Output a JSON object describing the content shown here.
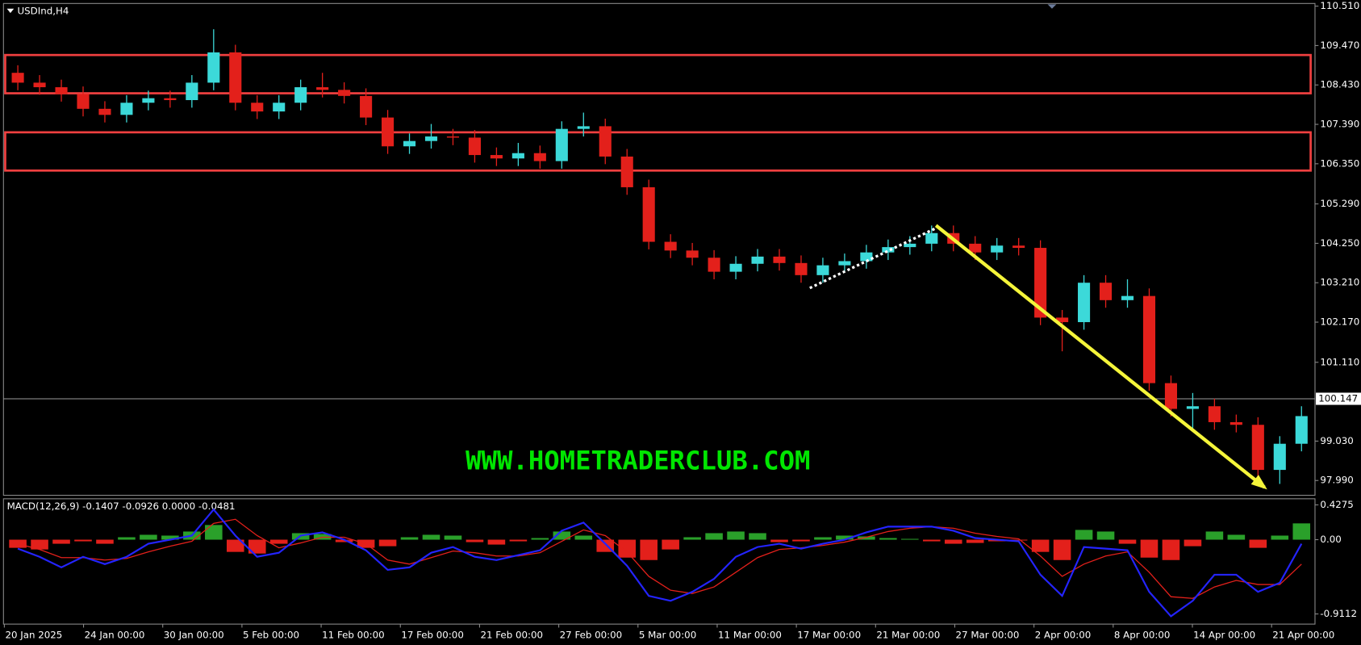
{
  "chart_data": [
    {
      "type": "candlestick",
      "title": "USDInd,H4",
      "open": [
        108.75,
        108.49,
        108.37,
        108.19,
        107.8,
        107.64,
        107.96,
        108.08,
        108.03,
        108.49,
        109.29,
        107.96,
        107.73,
        107.96,
        108.37,
        108.3,
        108.14,
        107.57,
        106.81,
        106.95,
        107.07,
        107.04,
        106.58,
        106.49,
        106.63,
        106.42,
        107.27,
        107.34,
        106.54,
        105.73,
        104.29,
        104.06,
        103.87,
        103.5,
        103.71,
        103.9,
        103.73,
        103.41,
        103.67,
        103.78,
        104.01,
        104.15,
        104.24,
        104.52,
        104.24,
        104.01,
        104.19,
        104.13,
        102.29,
        102.17,
        103.21,
        102.75,
        102.86,
        100.56,
        99.88,
        99.95,
        99.53,
        99.46,
        98.27,
        98.96
      ],
      "high": [
        108.95,
        108.69,
        108.57,
        108.39,
        108.0,
        108.16,
        108.28,
        108.28,
        108.69,
        109.9,
        109.49,
        108.16,
        108.16,
        108.57,
        108.75,
        108.5,
        108.34,
        107.77,
        107.15,
        107.4,
        107.27,
        107.24,
        106.78,
        106.9,
        106.83,
        107.47,
        107.7,
        107.54,
        106.74,
        105.93,
        104.49,
        104.26,
        104.07,
        103.91,
        104.1,
        104.1,
        103.93,
        103.87,
        103.98,
        104.21,
        104.35,
        104.44,
        104.72,
        104.72,
        104.44,
        104.39,
        104.39,
        104.33,
        102.49,
        103.41,
        103.41,
        103.3,
        103.06,
        100.76,
        100.3,
        100.15,
        99.73,
        99.66,
        99.16,
        99.95
      ],
      "low": [
        108.29,
        108.17,
        107.99,
        107.6,
        107.44,
        107.44,
        107.76,
        107.83,
        107.83,
        108.29,
        107.76,
        107.53,
        107.53,
        107.76,
        108.1,
        107.94,
        107.37,
        106.61,
        106.61,
        106.75,
        106.84,
        106.38,
        106.29,
        106.29,
        106.22,
        106.22,
        107.07,
        106.34,
        105.53,
        104.09,
        103.86,
        103.67,
        103.3,
        103.3,
        103.51,
        103.53,
        103.21,
        103.21,
        103.47,
        103.58,
        103.81,
        103.95,
        104.04,
        104.04,
        103.81,
        103.81,
        103.93,
        102.09,
        101.4,
        101.97,
        102.55,
        102.55,
        100.36,
        99.68,
        99.3,
        99.33,
        99.26,
        98.07,
        97.9,
        98.76
      ],
      "close": [
        108.49,
        108.37,
        108.19,
        107.8,
        107.64,
        107.96,
        108.08,
        108.03,
        108.49,
        109.29,
        107.96,
        107.73,
        107.96,
        108.37,
        108.3,
        108.14,
        107.57,
        106.81,
        106.95,
        107.07,
        107.04,
        106.58,
        106.49,
        106.63,
        106.42,
        107.27,
        107.34,
        106.54,
        105.73,
        104.29,
        104.06,
        103.87,
        103.5,
        103.71,
        103.9,
        103.73,
        103.41,
        103.67,
        103.78,
        104.01,
        104.15,
        104.24,
        104.52,
        104.24,
        104.01,
        104.19,
        104.13,
        102.29,
        102.17,
        103.21,
        102.75,
        102.86,
        100.56,
        99.88,
        99.95,
        99.53,
        99.46,
        98.27,
        98.96,
        99.69
      ],
      "up_color": "#3cd9d9",
      "down_color": "#e3201b",
      "ylim": [
        97.6,
        110.58
      ],
      "yticks": [
        {
          "value": 110.51,
          "label": "110.510"
        },
        {
          "value": 109.47,
          "label": "109.470"
        },
        {
          "value": 108.43,
          "label": "108.430"
        },
        {
          "value": 107.39,
          "label": "107.390"
        },
        {
          "value": 106.35,
          "label": "106.350"
        },
        {
          "value": 105.29,
          "label": "105.290"
        },
        {
          "value": 104.25,
          "label": "104.250"
        },
        {
          "value": 103.21,
          "label": "103.210"
        },
        {
          "value": 102.17,
          "label": "102.170"
        },
        {
          "value": 101.11,
          "label": "101.110"
        },
        {
          "value": 99.03,
          "label": "99.030"
        },
        {
          "value": 97.99,
          "label": "97.990"
        }
      ],
      "current_price": {
        "value": 100.147,
        "label": "100.147"
      },
      "zones": [
        {
          "low": 108.21,
          "high": 109.22,
          "color": "#f04040"
        },
        {
          "low": 106.17,
          "high": 107.18,
          "color": "#f04040"
        }
      ],
      "trendlines": [
        {
          "from": [
            36.4,
            103.07
          ],
          "to": [
            42.2,
            104.65
          ],
          "color": "#ffffff",
          "style": "dotted"
        },
        {
          "from": [
            42.2,
            104.72
          ],
          "to": [
            57.3,
            97.81
          ],
          "color": "#f5f53a",
          "style": "arrow"
        }
      ],
      "watermark": "WWW.HOMETRADERCLUB.COM",
      "xtick_labels": [
        "20 Jan 2025",
        "24 Jan 00:00",
        "30 Jan 00:00",
        "5 Feb 00:00",
        "11 Feb 00:00",
        "17 Feb 00:00",
        "21 Feb 00:00",
        "27 Feb 00:00",
        "5 Mar 00:00",
        "11 Mar 00:00",
        "17 Mar 00:00",
        "21 Mar 00:00",
        "27 Mar 00:00",
        "2 Apr 00:00",
        "8 Apr 00:00",
        "14 Apr 00:00",
        "21 Apr 00:00"
      ]
    },
    {
      "type": "macd",
      "title": "MACD(12,26,9) -0.1407 -0.0926 0.0000 -0.0481",
      "histogram": [
        -0.1,
        -0.12,
        -0.05,
        -0.02,
        -0.05,
        0.03,
        0.06,
        0.05,
        0.1,
        0.18,
        -0.15,
        -0.17,
        -0.05,
        0.08,
        0.07,
        -0.03,
        -0.1,
        -0.08,
        0.03,
        0.06,
        0.05,
        -0.03,
        -0.06,
        -0.02,
        0.02,
        0.1,
        0.05,
        -0.15,
        -0.22,
        -0.25,
        -0.12,
        0.03,
        0.08,
        0.1,
        0.08,
        -0.03,
        -0.02,
        0.03,
        0.05,
        0.04,
        0.02,
        0.01,
        -0.02,
        -0.05,
        -0.04,
        -0.02,
        -0.01,
        -0.15,
        -0.25,
        0.12,
        0.1,
        -0.05,
        -0.22,
        -0.25,
        -0.08,
        0.1,
        0.06,
        -0.1,
        0.05,
        0.2
      ],
      "pos_color": "#2aa02a",
      "neg_color": "#e3201b",
      "macd_line": {
        "color": "#2424ff",
        "values": [
          -0.11,
          -0.21,
          -0.34,
          -0.21,
          -0.3,
          -0.21,
          -0.05,
          0,
          0.05,
          0.37,
          0.05,
          -0.21,
          -0.16,
          0.05,
          0.09,
          0,
          -0.13,
          -0.37,
          -0.34,
          -0.16,
          -0.09,
          -0.21,
          -0.25,
          -0.19,
          -0.13,
          0.11,
          0.21,
          -0.05,
          -0.32,
          -0.69,
          -0.75,
          -0.64,
          -0.48,
          -0.21,
          -0.09,
          -0.05,
          -0.11,
          -0.05,
          0,
          0.09,
          0.16,
          0.16,
          0.16,
          0.11,
          0.02,
          0,
          -0.02,
          -0.43,
          -0.69,
          -0.09,
          -0.11,
          -0.13,
          -0.64,
          -0.94,
          -0.75,
          -0.43,
          -0.43,
          -0.64,
          -0.53,
          -0.05
        ]
      },
      "signal_line": {
        "color": "#e3201b",
        "values": [
          -0.05,
          -0.12,
          -0.22,
          -0.22,
          -0.25,
          -0.23,
          -0.15,
          -0.08,
          -0.02,
          0.2,
          0.25,
          0.05,
          -0.1,
          -0.04,
          0.03,
          0.03,
          -0.05,
          -0.25,
          -0.3,
          -0.22,
          -0.14,
          -0.16,
          -0.2,
          -0.2,
          -0.16,
          -0.02,
          0.12,
          0.05,
          -0.15,
          -0.45,
          -0.62,
          -0.66,
          -0.58,
          -0.4,
          -0.22,
          -0.12,
          -0.1,
          -0.07,
          -0.03,
          0.03,
          0.1,
          0.14,
          0.16,
          0.14,
          0.08,
          0.04,
          0.01,
          -0.2,
          -0.45,
          -0.3,
          -0.2,
          -0.15,
          -0.4,
          -0.7,
          -0.72,
          -0.58,
          -0.5,
          -0.55,
          -0.55,
          -0.3
        ]
      },
      "ylim": [
        -1.036,
        0.502
      ],
      "yticks": [
        0.4275,
        {
          "value": 0,
          "label": "0.00"
        },
        -0.9112
      ]
    }
  ]
}
